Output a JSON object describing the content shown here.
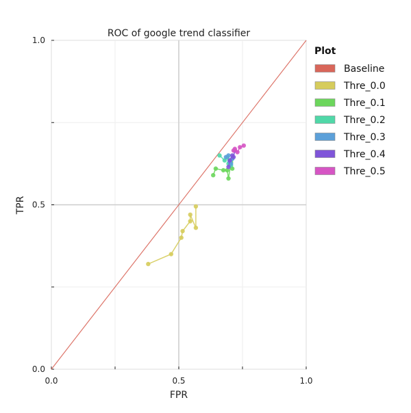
{
  "chart_data": {
    "type": "line",
    "title": "ROC of google trend classifier",
    "xlabel": "FPR",
    "ylabel": "TPR",
    "xlim": [
      0.0,
      1.0
    ],
    "ylim": [
      0.0,
      1.0
    ],
    "x_ticks": [
      "0.0",
      "0.5",
      "1.0"
    ],
    "y_ticks": [
      "0.0",
      "0.5",
      "1.0"
    ],
    "grid": true,
    "legend": {
      "title": "Plot",
      "placement": "right-outside-top"
    },
    "series": [
      {
        "name": "Baseline",
        "color": "#d9665a",
        "markers": false,
        "x": [
          0.0,
          1.0
        ],
        "y": [
          0.0,
          1.0
        ]
      },
      {
        "name": "Thre_0.0",
        "color": "#d6cc5c",
        "markers": true,
        "x": [
          0.38,
          0.47,
          0.51,
          0.515,
          0.545,
          0.545,
          0.567,
          0.567
        ],
        "y": [
          0.32,
          0.35,
          0.4,
          0.42,
          0.45,
          0.47,
          0.43,
          0.495
        ]
      },
      {
        "name": "Thre_0.1",
        "color": "#6cd65c",
        "markers": true,
        "x": [
          0.635,
          0.645,
          0.675,
          0.69,
          0.695,
          0.705,
          0.71
        ],
        "y": [
          0.59,
          0.61,
          0.605,
          0.605,
          0.58,
          0.63,
          0.61
        ]
      },
      {
        "name": "Thre_0.2",
        "color": "#50d8a8",
        "markers": true,
        "x": [
          0.66,
          0.68,
          0.69,
          0.695,
          0.705,
          0.71
        ],
        "y": [
          0.65,
          0.635,
          0.645,
          0.625,
          0.62,
          0.64
        ]
      },
      {
        "name": "Thre_0.3",
        "color": "#5ca0d9",
        "markers": true,
        "x": [
          0.685,
          0.695,
          0.7,
          0.705,
          0.71
        ],
        "y": [
          0.645,
          0.65,
          0.63,
          0.625,
          0.64
        ]
      },
      {
        "name": "Thre_0.4",
        "color": "#7f55d9",
        "markers": true,
        "x": [
          0.695,
          0.7,
          0.71,
          0.715,
          0.72
        ],
        "y": [
          0.615,
          0.635,
          0.65,
          0.645,
          0.665
        ]
      },
      {
        "name": "Thre_0.5",
        "color": "#d655c4",
        "markers": true,
        "x": [
          0.715,
          0.72,
          0.73,
          0.74,
          0.755
        ],
        "y": [
          0.665,
          0.67,
          0.66,
          0.675,
          0.68
        ]
      }
    ]
  }
}
